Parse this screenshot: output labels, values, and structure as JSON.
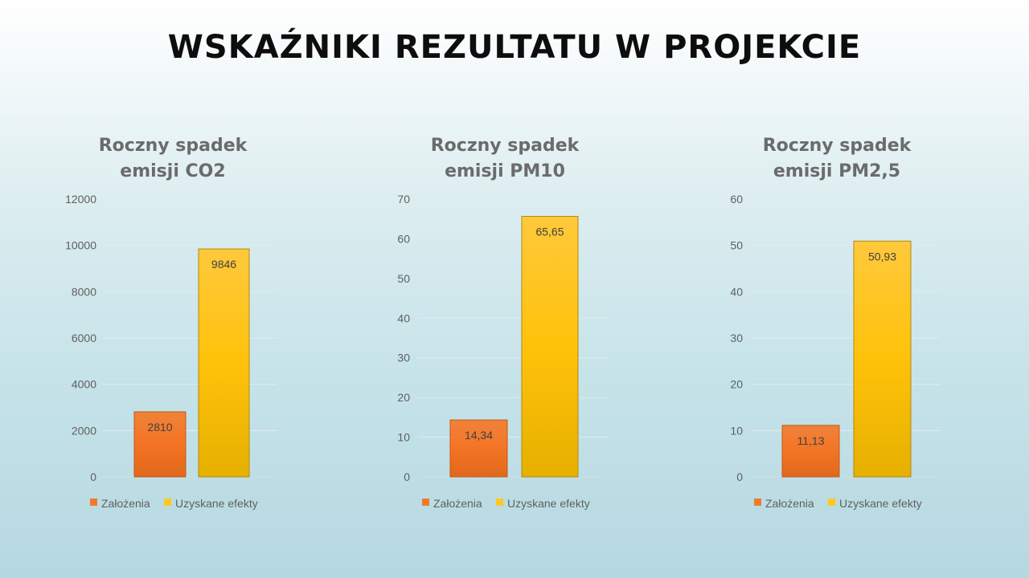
{
  "slide": {
    "title": "WSKAŹNIKI REZULTATU W PROJEKCIE"
  },
  "colors": {
    "zalozenia": "#f07a2a",
    "uzyskane": "#ffc81e"
  },
  "chart_data": [
    {
      "type": "bar",
      "title_lines": [
        "Roczny spadek",
        "emisji CO2"
      ],
      "categories": [
        "Założenia",
        "Uzyskane efekty"
      ],
      "values": [
        2810,
        9846
      ],
      "value_labels": [
        "2810",
        "9846"
      ],
      "ylim": [
        0,
        12000
      ],
      "yticks": [
        0,
        2000,
        4000,
        6000,
        8000,
        10000,
        12000
      ],
      "grid": true,
      "legend": "bottom"
    },
    {
      "type": "bar",
      "title_lines": [
        "Roczny spadek",
        "emisji PM10"
      ],
      "categories": [
        "Założenia",
        "Uzyskane efekty"
      ],
      "values": [
        14.34,
        65.65
      ],
      "value_labels": [
        "14,34",
        "65,65"
      ],
      "ylim": [
        0,
        70
      ],
      "yticks": [
        0,
        10,
        20,
        30,
        40,
        50,
        60,
        70
      ],
      "grid": true,
      "legend": "bottom"
    },
    {
      "type": "bar",
      "title_lines": [
        "Roczny spadek",
        "emisji PM2,5"
      ],
      "categories": [
        "Założenia",
        "Uzyskane efekty"
      ],
      "values": [
        11.13,
        50.93
      ],
      "value_labels": [
        "11,13",
        "50,93"
      ],
      "ylim": [
        0,
        60
      ],
      "yticks": [
        0,
        10,
        20,
        30,
        40,
        50,
        60
      ],
      "grid": true,
      "legend": "bottom"
    }
  ]
}
